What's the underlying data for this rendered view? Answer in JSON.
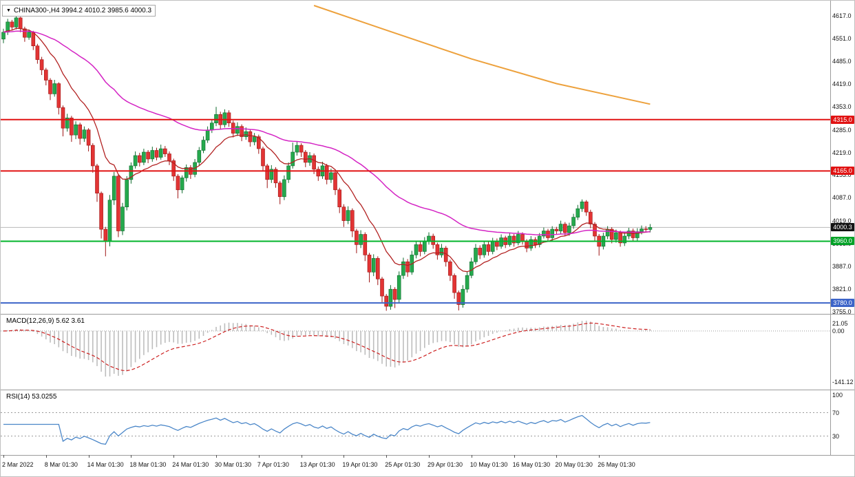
{
  "ui": {
    "symbol_label": "CHINA300-,H4 3994.2 4010.2 3985.6 4000.3",
    "dropdown_icon": "▼"
  },
  "chart_data": [
    {
      "type": "candlestick",
      "symbol": "CHINA300-",
      "timeframe": "H4",
      "ohlc_display": {
        "open": 3994.2,
        "high": 4010.2,
        "low": 3985.6,
        "close": 4000.3
      },
      "colors": {
        "up": "#25a94d",
        "up_stroke": "#0e6b2d",
        "down": "#e23434",
        "down_stroke": "#9e1414"
      },
      "y_axis": {
        "range": [
          3748,
          4662
        ],
        "ticks": [
          "4617.0",
          "4551.0",
          "4485.0",
          "4419.0",
          "4353.0",
          "4285.0",
          "4219.0",
          "4153.0",
          "4087.0",
          "4019.0",
          "3953.0",
          "3887.0",
          "3821.0",
          "3755.0"
        ]
      },
      "x_ticks": [
        {
          "bar": 0,
          "label": "2 Mar 2022"
        },
        {
          "bar": 10,
          "label": "8 Mar 01:30"
        },
        {
          "bar": 20,
          "label": "14 Mar 01:30"
        },
        {
          "bar": 30,
          "label": "18 Mar 01:30"
        },
        {
          "bar": 40,
          "label": "24 Mar 01:30"
        },
        {
          "bar": 50,
          "label": "30 Mar 01:30"
        },
        {
          "bar": 60,
          "label": "7 Apr 01:30"
        },
        {
          "bar": 70,
          "label": "13 Apr 01:30"
        },
        {
          "bar": 80,
          "label": "19 Apr 01:30"
        },
        {
          "bar": 90,
          "label": "25 Apr 01:30"
        },
        {
          "bar": 100,
          "label": "29 Apr 01:30"
        },
        {
          "bar": 110,
          "label": "10 May 01:30"
        },
        {
          "bar": 120,
          "label": "16 May 01:30"
        },
        {
          "bar": 130,
          "label": "20 May 01:30"
        },
        {
          "bar": 140,
          "label": "26 May 01:30"
        }
      ],
      "hlines": [
        {
          "price": 4315.0,
          "label": "4315.0",
          "color": "#e11212",
          "badge_bg": "#e11212",
          "name": "resistance-line-4315"
        },
        {
          "price": 4165.0,
          "label": "4165.0",
          "color": "#e11212",
          "badge_bg": "#e11212",
          "name": "resistance-line-4165"
        },
        {
          "price": 3960.0,
          "label": "3960.0",
          "color": "#00b42a",
          "badge_bg": "#00a226",
          "name": "support-line-3960"
        },
        {
          "price": 3780.0,
          "label": "3780.0",
          "color": "#3c64c8",
          "badge_bg": "#3c64c8",
          "name": "support-line-3780"
        }
      ],
      "current_price": {
        "value": 4000.3,
        "label": "4000.3",
        "line_color": "#b8b8b8",
        "badge_bg": "#141414"
      },
      "overlays": [
        {
          "name": "ma-fast-line",
          "type": "ema",
          "period": 13,
          "color": "#b22222",
          "width": 1.3
        },
        {
          "name": "ma-slow-line",
          "type": "ema",
          "period": 55,
          "color": "#d424c4",
          "width": 1.5
        },
        {
          "name": "trend-line-orange",
          "type": "polyline",
          "color": "#eda13c",
          "width": 2,
          "points": [
            [
              73,
              4648
            ],
            [
              90,
              4576
            ],
            [
              110,
              4492
            ],
            [
              130,
              4420
            ],
            [
              152,
              4360
            ]
          ]
        }
      ],
      "candles": [
        [
          4550,
          4580,
          4538,
          4570
        ],
        [
          4570,
          4609,
          4562,
          4600
        ],
        [
          4600,
          4606,
          4575,
          4585
        ],
        [
          4585,
          4617,
          4578,
          4612
        ],
        [
          4612,
          4615,
          4570,
          4580
        ],
        [
          4580,
          4586,
          4542,
          4555
        ],
        [
          4555,
          4578,
          4548,
          4570
        ],
        [
          4570,
          4574,
          4518,
          4530
        ],
        [
          4530,
          4536,
          4478,
          4490
        ],
        [
          4490,
          4498,
          4445,
          4460
        ],
        [
          4460,
          4466,
          4415,
          4430
        ],
        [
          4430,
          4436,
          4372,
          4390
        ],
        [
          4390,
          4431,
          4382,
          4420
        ],
        [
          4420,
          4424,
          4330,
          4350
        ],
        [
          4350,
          4356,
          4266,
          4290
        ],
        [
          4290,
          4332,
          4280,
          4320
        ],
        [
          4320,
          4326,
          4250,
          4270
        ],
        [
          4270,
          4310,
          4258,
          4300
        ],
        [
          4300,
          4306,
          4242,
          4260
        ],
        [
          4260,
          4295,
          4250,
          4285
        ],
        [
          4285,
          4290,
          4222,
          4240
        ],
        [
          4240,
          4246,
          4160,
          4180
        ],
        [
          4180,
          4186,
          4075,
          4100
        ],
        [
          4100,
          4105,
          3968,
          3995
        ],
        [
          3995,
          4002,
          3916,
          3960
        ],
        [
          3960,
          4095,
          3945,
          4080
        ],
        [
          4080,
          4162,
          4066,
          4150
        ],
        [
          4150,
          4155,
          3972,
          3990
        ],
        [
          3990,
          4072,
          3978,
          4060
        ],
        [
          4060,
          4150,
          4050,
          4140
        ],
        [
          4140,
          4190,
          4128,
          4180
        ],
        [
          4180,
          4222,
          4172,
          4210
        ],
        [
          4210,
          4218,
          4178,
          4190
        ],
        [
          4190,
          4230,
          4182,
          4220
        ],
        [
          4220,
          4226,
          4188,
          4200
        ],
        [
          4200,
          4236,
          4192,
          4225
        ],
        [
          4225,
          4233,
          4196,
          4205
        ],
        [
          4205,
          4242,
          4198,
          4230
        ],
        [
          4230,
          4238,
          4206,
          4215
        ],
        [
          4215,
          4222,
          4182,
          4195
        ],
        [
          4195,
          4201,
          4136,
          4150
        ],
        [
          4150,
          4156,
          4085,
          4110
        ],
        [
          4110,
          4152,
          4100,
          4145
        ],
        [
          4145,
          4184,
          4134,
          4175
        ],
        [
          4175,
          4182,
          4142,
          4155
        ],
        [
          4155,
          4200,
          4147,
          4190
        ],
        [
          4190,
          4235,
          4181,
          4225
        ],
        [
          4225,
          4266,
          4217,
          4255
        ],
        [
          4255,
          4295,
          4247,
          4285
        ],
        [
          4285,
          4315,
          4276,
          4305
        ],
        [
          4305,
          4352,
          4296,
          4330
        ],
        [
          4330,
          4338,
          4288,
          4300
        ],
        [
          4300,
          4345,
          4292,
          4335
        ],
        [
          4335,
          4342,
          4294,
          4305
        ],
        [
          4305,
          4312,
          4263,
          4275
        ],
        [
          4275,
          4307,
          4267,
          4295
        ],
        [
          4295,
          4301,
          4252,
          4265
        ],
        [
          4265,
          4292,
          4256,
          4280
        ],
        [
          4280,
          4286,
          4236,
          4250
        ],
        [
          4250,
          4276,
          4240,
          4265
        ],
        [
          4265,
          4271,
          4215,
          4230
        ],
        [
          4230,
          4236,
          4165,
          4180
        ],
        [
          4180,
          4186,
          4115,
          4140
        ],
        [
          4140,
          4182,
          4130,
          4170
        ],
        [
          4170,
          4176,
          4116,
          4130
        ],
        [
          4130,
          4136,
          4068,
          4090
        ],
        [
          4090,
          4152,
          4080,
          4140
        ],
        [
          4140,
          4190,
          4130,
          4180
        ],
        [
          4180,
          4248,
          4172,
          4220
        ],
        [
          4220,
          4250,
          4210,
          4240
        ],
        [
          4240,
          4246,
          4206,
          4220
        ],
        [
          4220,
          4226,
          4176,
          4190
        ],
        [
          4190,
          4220,
          4180,
          4210
        ],
        [
          4210,
          4216,
          4156,
          4170
        ],
        [
          4170,
          4178,
          4136,
          4150
        ],
        [
          4150,
          4192,
          4142,
          4180
        ],
        [
          4180,
          4186,
          4126,
          4140
        ],
        [
          4140,
          4172,
          4130,
          4160
        ],
        [
          4160,
          4166,
          4095,
          4110
        ],
        [
          4110,
          4116,
          4042,
          4060
        ],
        [
          4060,
          4068,
          4002,
          4020
        ],
        [
          4020,
          4062,
          4010,
          4050
        ],
        [
          4050,
          4056,
          3972,
          3990
        ],
        [
          3990,
          3996,
          3925,
          3950
        ],
        [
          3950,
          3992,
          3940,
          3980
        ],
        [
          3980,
          3986,
          3902,
          3920
        ],
        [
          3920,
          3926,
          3840,
          3870
        ],
        [
          3870,
          3922,
          3858,
          3910
        ],
        [
          3910,
          3916,
          3832,
          3850
        ],
        [
          3850,
          3856,
          3782,
          3800
        ],
        [
          3800,
          3806,
          3757,
          3770
        ],
        [
          3770,
          3832,
          3760,
          3820
        ],
        [
          3820,
          3826,
          3765,
          3790
        ],
        [
          3790,
          3872,
          3780,
          3860
        ],
        [
          3860,
          3912,
          3850,
          3900
        ],
        [
          3900,
          3908,
          3856,
          3870
        ],
        [
          3870,
          3932,
          3862,
          3920
        ],
        [
          3920,
          3962,
          3910,
          3950
        ],
        [
          3950,
          3958,
          3916,
          3930
        ],
        [
          3930,
          3972,
          3922,
          3960
        ],
        [
          3960,
          3986,
          3950,
          3975
        ],
        [
          3975,
          3982,
          3938,
          3950
        ],
        [
          3950,
          3956,
          3906,
          3920
        ],
        [
          3920,
          3952,
          3912,
          3940
        ],
        [
          3940,
          3946,
          3886,
          3900
        ],
        [
          3900,
          3906,
          3844,
          3860
        ],
        [
          3860,
          3866,
          3792,
          3810
        ],
        [
          3810,
          3816,
          3758,
          3775
        ],
        [
          3775,
          3832,
          3766,
          3820
        ],
        [
          3820,
          3872,
          3810,
          3860
        ],
        [
          3860,
          3912,
          3852,
          3900
        ],
        [
          3900,
          3952,
          3892,
          3940
        ],
        [
          3940,
          3948,
          3908,
          3920
        ],
        [
          3920,
          3962,
          3912,
          3950
        ],
        [
          3950,
          3958,
          3918,
          3930
        ],
        [
          3930,
          3970,
          3922,
          3960
        ],
        [
          3960,
          3968,
          3934,
          3945
        ],
        [
          3945,
          3980,
          3938,
          3970
        ],
        [
          3970,
          3976,
          3940,
          3950
        ],
        [
          3950,
          3985,
          3944,
          3975
        ],
        [
          3975,
          3981,
          3944,
          3955
        ],
        [
          3955,
          3990,
          3948,
          3980
        ],
        [
          3980,
          3986,
          3950,
          3960
        ],
        [
          3960,
          3966,
          3928,
          3940
        ],
        [
          3940,
          3975,
          3932,
          3965
        ],
        [
          3965,
          3972,
          3940,
          3950
        ],
        [
          3950,
          3984,
          3942,
          3975
        ],
        [
          3975,
          4000,
          3968,
          3990
        ],
        [
          3990,
          3996,
          3960,
          3970
        ],
        [
          3970,
          4004,
          3962,
          3995
        ],
        [
          3995,
          4002,
          3980,
          3990
        ],
        [
          3990,
          4020,
          3982,
          4010
        ],
        [
          4010,
          4016,
          3975,
          3985
        ],
        [
          3985,
          4014,
          3976,
          4005
        ],
        [
          4005,
          4040,
          3996,
          4030
        ],
        [
          4030,
          4066,
          4022,
          4055
        ],
        [
          4055,
          4082,
          4046,
          4075
        ],
        [
          4075,
          4080,
          4034,
          4045
        ],
        [
          4045,
          4052,
          3998,
          4010
        ],
        [
          4010,
          4016,
          3962,
          3975
        ],
        [
          3975,
          3981,
          3918,
          3945
        ],
        [
          3945,
          3985,
          3936,
          3975
        ],
        [
          3975,
          4004,
          3966,
          3995
        ],
        [
          3995,
          4001,
          3954,
          3965
        ],
        [
          3965,
          3994,
          3956,
          3985
        ],
        [
          3985,
          3991,
          3944,
          3955
        ],
        [
          3955,
          3986,
          3946,
          3975
        ],
        [
          3975,
          3999,
          3966,
          3990
        ],
        [
          3990,
          3997,
          3960,
          3970
        ],
        [
          3970,
          3998,
          3962,
          3988
        ],
        [
          3988,
          4006,
          3980,
          3996
        ],
        [
          3996,
          4004,
          3986,
          3994
        ],
        [
          3994.2,
          4010.2,
          3985.6,
          4000.3
        ]
      ]
    },
    {
      "type": "macd",
      "label": "MACD(12,26,9) 5.62 3.61",
      "fast": 12,
      "slow": 26,
      "signal": 9,
      "value": 5.62,
      "signal_value": 3.61,
      "y_ticks": [
        {
          "v": 21.05,
          "label": "21.05"
        },
        {
          "v": 0,
          "label": "0.00"
        },
        {
          "v": -141.12,
          "label": "-141.12"
        }
      ],
      "range": [
        -155,
        40
      ],
      "colors": {
        "histogram": "#bdbdbd",
        "signal": "#cd2020",
        "zero_line": "#999999"
      }
    },
    {
      "type": "rsi",
      "label": "RSI(14) 53.0255",
      "period": 14,
      "value": 53.0255,
      "y_ticks": [
        {
          "v": 100,
          "label": "100"
        },
        {
          "v": 70,
          "label": "70"
        },
        {
          "v": 30,
          "label": "30"
        }
      ],
      "levels": [
        70,
        30
      ],
      "range": [
        0,
        100
      ],
      "colors": {
        "line": "#4a86c8",
        "level_line": "#999999"
      }
    }
  ]
}
